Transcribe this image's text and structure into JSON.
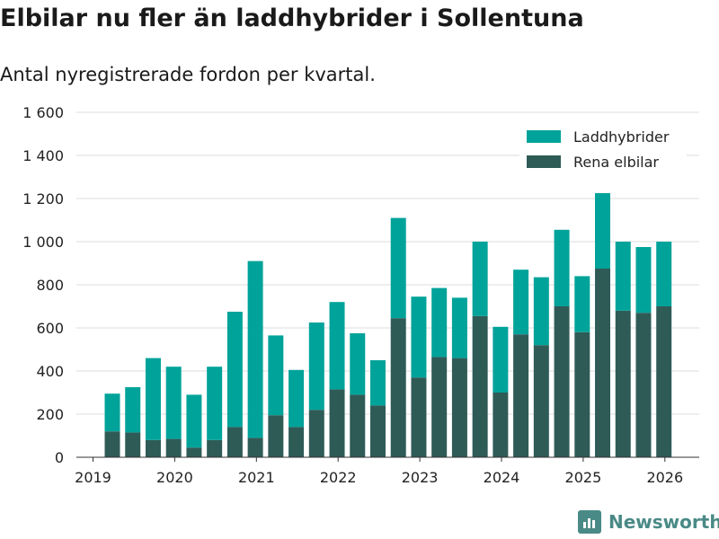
{
  "chart_data": {
    "type": "bar",
    "stacked": true,
    "title": "Elbilar nu fler än laddhybrider i Sollentuna",
    "subtitle": "Antal nyregistrerade fordon per kvartal.",
    "ylim": [
      0,
      1600
    ],
    "yticks": [
      0,
      200,
      400,
      600,
      800,
      1000,
      1200,
      1400,
      1600
    ],
    "ytick_labels": [
      "0",
      "200",
      "400",
      "600",
      "800",
      "1 000",
      "1 200",
      "1 400",
      "1 600"
    ],
    "xtick_labels": [
      "2019",
      "2020",
      "2021",
      "2022",
      "2023",
      "2024",
      "2025",
      "2026"
    ],
    "legend_position": "top-right",
    "categories": [
      "2019 Q2",
      "2019 Q3",
      "2019 Q4",
      "2020 Q1",
      "2020 Q2",
      "2020 Q3",
      "2020 Q4",
      "2021 Q1",
      "2021 Q2",
      "2021 Q3",
      "2021 Q4",
      "2022 Q1",
      "2022 Q2",
      "2022 Q3",
      "2022 Q4",
      "2023 Q1",
      "2023 Q2",
      "2023 Q3",
      "2023 Q4",
      "2024 Q1",
      "2024 Q2",
      "2024 Q3",
      "2024 Q4",
      "2025 Q1",
      "2025 Q2",
      "2025 Q3",
      "2025 Q4",
      "2026 Q1"
    ],
    "series": [
      {
        "name": "Rena elbilar",
        "color": "#2f5b57",
        "values": [
          120,
          115,
          80,
          85,
          45,
          80,
          140,
          90,
          195,
          140,
          220,
          315,
          290,
          240,
          645,
          370,
          465,
          460,
          655,
          300,
          570,
          520,
          700,
          580,
          875,
          680,
          670,
          700
        ]
      },
      {
        "name": "Laddhybrider",
        "color": "#00a39a",
        "values": [
          175,
          210,
          380,
          335,
          245,
          340,
          535,
          820,
          370,
          265,
          405,
          405,
          285,
          210,
          465,
          375,
          320,
          280,
          345,
          305,
          300,
          315,
          355,
          260,
          350,
          320,
          305,
          300
        ]
      }
    ]
  },
  "logo": {
    "text": "Newsworthy"
  }
}
